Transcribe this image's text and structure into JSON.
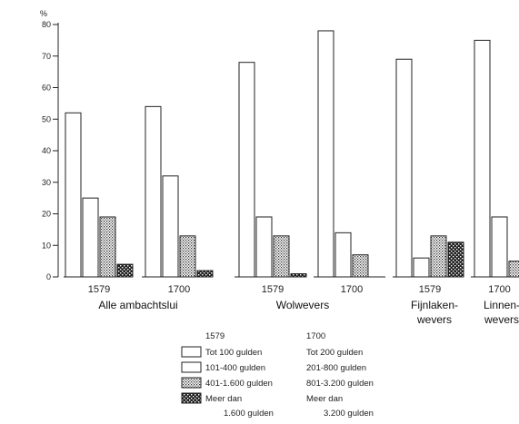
{
  "chart_data": {
    "type": "bar",
    "title": "",
    "xlabel": "",
    "ylabel": "%",
    "ylim": [
      0,
      80
    ],
    "yticks": [
      0,
      10,
      20,
      30,
      40,
      50,
      60,
      70,
      80
    ],
    "grid": false,
    "groups": [
      {
        "label": "Alle ambachtslui",
        "clusters": [
          {
            "year": "1579",
            "values": [
              52,
              25,
              19,
              4
            ]
          },
          {
            "year": "1700",
            "values": [
              54,
              32,
              13,
              2
            ]
          }
        ]
      },
      {
        "label": "Wolwevers",
        "clusters": [
          {
            "year": "1579",
            "values": [
              68,
              19,
              13,
              1
            ]
          },
          {
            "year": "1700",
            "values": [
              78,
              14,
              7,
              0
            ]
          }
        ]
      },
      {
        "label": "Fijnlaken-\nwevers",
        "clusters": [
          {
            "year": "1579",
            "values": [
              69,
              6,
              13,
              11
            ]
          }
        ]
      },
      {
        "label": "Linnen-\nwevers",
        "clusters": [
          {
            "year": "1700",
            "values": [
              75,
              19,
              5
            ]
          }
        ]
      }
    ],
    "legend": {
      "headers": [
        "1579",
        "1700"
      ],
      "entries": [
        {
          "label_1579": "Tot 100 gulden",
          "label_1700": "Tot 200 gulden",
          "pattern": "white"
        },
        {
          "label_1579": "101-400 gulden",
          "label_1700": "201-800 gulden",
          "pattern": "white"
        },
        {
          "label_1579": "401-1.600 gulden",
          "label_1700": "801-3.200 gulden",
          "pattern": "dotted"
        },
        {
          "label_1579": "Meer dan\n1.600 gulden",
          "label_1700": "Meer dan\n3.200 gulden",
          "pattern": "dark"
        }
      ]
    }
  }
}
